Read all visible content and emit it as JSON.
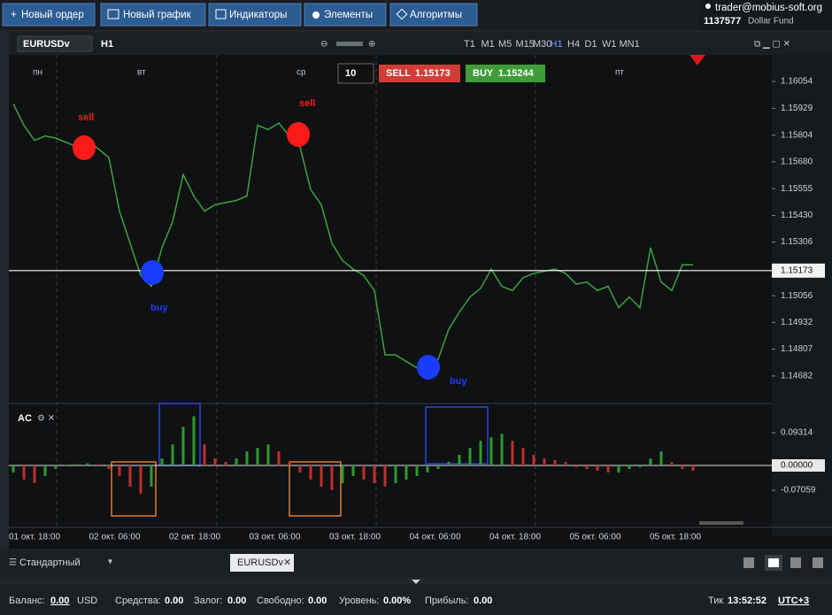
{
  "toolbar": {
    "buttons": [
      "Новый ордер",
      "Новый график",
      "Индикаторы",
      "Элементы",
      "Алгоритмы"
    ],
    "account_email": "trader@mobius-soft.org",
    "account_id": "1137577",
    "account_name": "Dollar Fund"
  },
  "chart_toolbar": {
    "symbol": "EURUSDv",
    "timeframe": "H1",
    "timeframes": [
      "T1",
      "M1",
      "M5",
      "M15",
      "M30",
      "H1",
      "H4",
      "D1",
      "W1",
      "MN1"
    ]
  },
  "trade_panel": {
    "lot": "10",
    "sell": "SELL",
    "sell_price": "1.15173",
    "buy": "BUY",
    "buy_price": "1.15244"
  },
  "chart_data": [
    {
      "type": "line",
      "color": "#3da33d",
      "day_labels": [
        "пн",
        "вт",
        "ср",
        "пт"
      ],
      "x_labels": [
        "01 окт. 18:00",
        "02 окт. 06:00",
        "02 окт. 18:00",
        "03 окт. 06:00",
        "03 окт. 18:00",
        "04 окт. 06:00",
        "04 окт. 18:00",
        "05 окт. 06:00",
        "05 окт. 18:00"
      ],
      "values": [
        1.1595,
        1.1585,
        1.1578,
        1.158,
        1.1579,
        1.1577,
        1.1575,
        1.1578,
        1.1574,
        1.157,
        1.1545,
        1.153,
        1.1515,
        1.151,
        1.1528,
        1.154,
        1.1562,
        1.1552,
        1.1545,
        1.1548,
        1.1549,
        1.155,
        1.1552,
        1.1585,
        1.1583,
        1.1586,
        1.158,
        1.1575,
        1.1555,
        1.1548,
        1.153,
        1.1522,
        1.1518,
        1.1515,
        1.1508,
        1.1478,
        1.1478,
        1.1475,
        1.1472,
        1.147,
        1.1476,
        1.149,
        1.1498,
        1.1505,
        1.1509,
        1.1518,
        1.151,
        1.1508,
        1.1514,
        1.1516,
        1.1517,
        1.1518,
        1.1516,
        1.1511,
        1.1512,
        1.1508,
        1.151,
        1.15,
        1.1505,
        1.15,
        1.1528,
        1.1512,
        1.1508,
        1.152,
        1.152
      ],
      "ylim": [
        1.14558,
        1.16178
      ],
      "yticks": [
        1.16054,
        1.15929,
        1.15804,
        {
          "value": 1.1568,
          "label": "1.15680"
        },
        1.15555,
        {
          "value": 1.1543,
          "label": "1.15430"
        },
        1.15306,
        1.15056,
        1.14932,
        1.14807,
        1.14682
      ],
      "current_price": 1.15173,
      "annotations": [
        {
          "text": "sell",
          "color": "#ff1a1a"
        },
        {
          "text": "sell",
          "color": "#ff1a1a"
        },
        {
          "text": "buy",
          "color": "#1a3cff"
        },
        {
          "text": "buy",
          "color": "#1a3cff"
        }
      ]
    },
    {
      "type": "bar",
      "name": "AC",
      "up_color": "#2f9a2f",
      "down_color": "#c0302b",
      "values": [
        -0.02,
        -0.04,
        -0.05,
        -0.03,
        -0.01,
        0.002,
        0.004,
        0.006,
        0.003,
        -0.01,
        -0.03,
        -0.06,
        -0.08,
        -0.06,
        0.02,
        0.06,
        0.11,
        0.14,
        0.06,
        0.02,
        0.01,
        0.02,
        0.04,
        0.05,
        0.06,
        0.04,
        0.01,
        -0.02,
        -0.04,
        -0.06,
        -0.07,
        -0.05,
        -0.03,
        -0.04,
        -0.05,
        -0.06,
        -0.05,
        -0.04,
        -0.03,
        -0.02,
        -0.01,
        0.01,
        0.03,
        0.05,
        0.07,
        0.08,
        0.09,
        0.07,
        0.05,
        0.03,
        0.02,
        0.015,
        0.01,
        -0.005,
        -0.01,
        -0.015,
        -0.02,
        -0.02,
        -0.01,
        -0.005,
        0.02,
        0.04,
        0.01,
        -0.01,
        -0.015
      ],
      "ylim": [
        -0.1737,
        0.1712
      ],
      "yticks": [
        0.09314,
        {
          "value": 0,
          "label": "0.00000"
        },
        -0.07059
      ]
    }
  ],
  "bottom_tabs": {
    "layout": "Стандартный",
    "tab": "EURUSDv"
  },
  "status_bar": {
    "balance_label": "Баланс:",
    "balance": "0.00",
    "currency": "USD",
    "equity_label": "Средства:",
    "equity": "0.00",
    "margin_label": "Залог:",
    "margin": "0.00",
    "free_label": "Свободно:",
    "free": "0.00",
    "level_label": "Уровень:",
    "level": "0.00%",
    "profit_label": "Прибыль:",
    "profit": "0.00",
    "tick_label": "Тик",
    "time": "13:52:52",
    "timezone": "UTC+3"
  }
}
